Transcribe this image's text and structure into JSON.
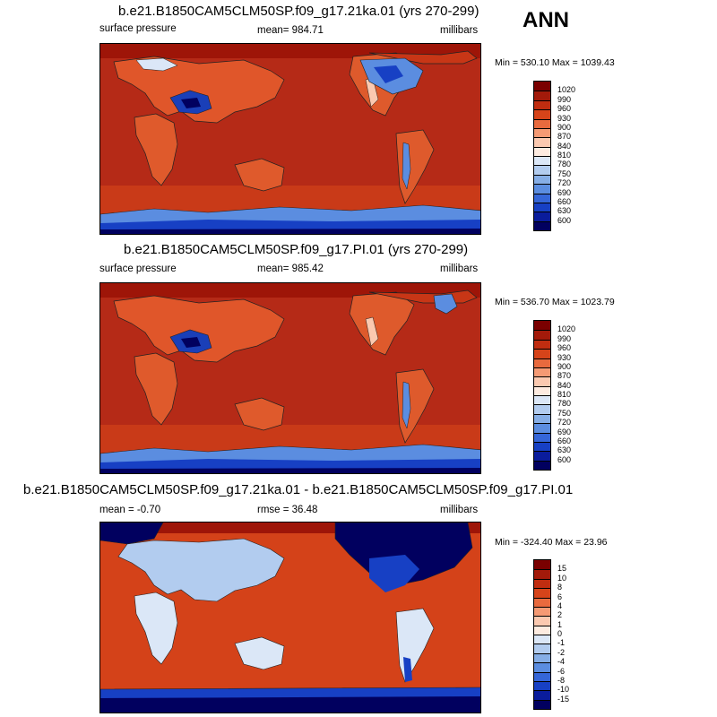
{
  "season": "ANN",
  "panels": [
    {
      "title": "b.e21.B1850CAM5CLM50SP.f09_g17.21ka.01 (yrs 270-299)",
      "left_label": "surface pressure",
      "center_label": "mean= 984.71",
      "right_label": "millibars",
      "minmax": "Min = 530.10 Max = 1039.43",
      "bg_color": "#b52a17",
      "legend_labels": [
        "1020",
        "990",
        "960",
        "930",
        "900",
        "870",
        "840",
        "810",
        "780",
        "750",
        "720",
        "690",
        "660",
        "630",
        "600"
      ],
      "legend_colors": [
        "#7a0000",
        "#a31a0a",
        "#c02d10",
        "#d6441a",
        "#e86a3e",
        "#f59a74",
        "#fbc9b0",
        "#fdebe0",
        "#dbe7f7",
        "#b2ccef",
        "#86aee6",
        "#5b8de0",
        "#3566d8",
        "#1740c4",
        "#0a1c9c",
        "#01005f"
      ]
    },
    {
      "title": "b.e21.B1850CAM5CLM50SP.f09_g17.PI.01 (yrs 270-299)",
      "left_label": "surface pressure",
      "center_label": "mean= 985.42",
      "right_label": "millibars",
      "minmax": "Min = 536.70 Max = 1023.79",
      "bg_color": "#b52a17",
      "legend_labels": [
        "1020",
        "990",
        "960",
        "930",
        "900",
        "870",
        "840",
        "810",
        "780",
        "750",
        "720",
        "690",
        "660",
        "630",
        "600"
      ],
      "legend_colors": [
        "#7a0000",
        "#a31a0a",
        "#c02d10",
        "#d6441a",
        "#e86a3e",
        "#f59a74",
        "#fbc9b0",
        "#fdebe0",
        "#dbe7f7",
        "#b2ccef",
        "#86aee6",
        "#5b8de0",
        "#3566d8",
        "#1740c4",
        "#0a1c9c",
        "#01005f"
      ]
    },
    {
      "title": "b.e21.B1850CAM5CLM50SP.f09_g17.21ka.01 - b.e21.B1850CAM5CLM50SP.f09_g17.PI.01",
      "left_label": "mean =  -0.70",
      "center_label": "rmse =  36.48",
      "right_label": "millibars",
      "minmax": "Min = -324.40 Max =  23.96",
      "bg_color": "#d44219",
      "legend_labels": [
        "15",
        "10",
        "8",
        "6",
        "4",
        "2",
        "1",
        "0",
        "-1",
        "-2",
        "-4",
        "-6",
        "-8",
        "-10",
        "-15"
      ],
      "legend_colors": [
        "#7a0000",
        "#a31a0a",
        "#c02d10",
        "#d6441a",
        "#e86a3e",
        "#f59a74",
        "#fbc9b0",
        "#fdebe0",
        "#dbe7f7",
        "#b2ccef",
        "#86aee6",
        "#5b8de0",
        "#3566d8",
        "#1740c4",
        "#0a1c9c",
        "#01005f"
      ]
    }
  ]
}
